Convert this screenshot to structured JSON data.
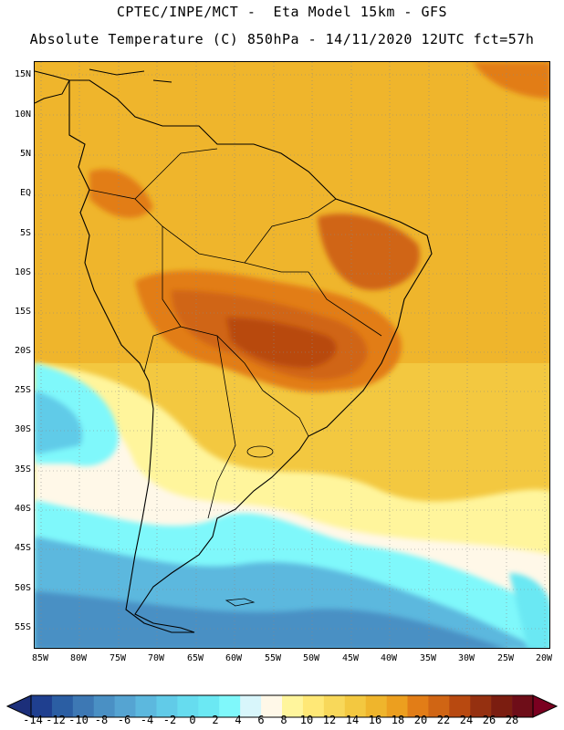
{
  "header": {
    "line1": "CPTEC/INPE/MCT -  Eta Model 15km - GFS",
    "line2": "Absolute Temperature (C) 850hPa - 14/11/2020 12UTC fct=57h"
  },
  "map": {
    "lat_labels": [
      "15N",
      "10N",
      "5N",
      "EQ",
      "5S",
      "10S",
      "15S",
      "20S",
      "25S",
      "30S",
      "35S",
      "40S",
      "45S",
      "50S",
      "55S"
    ],
    "lon_labels": [
      "85W",
      "80W",
      "75W",
      "70W",
      "65W",
      "60W",
      "55W",
      "50W",
      "45W",
      "40W",
      "35W",
      "30W",
      "25W",
      "20W"
    ]
  },
  "colorbar": {
    "labels": [
      "-14",
      "-12",
      "-10",
      "-8",
      "-6",
      "-4",
      "-2",
      "0",
      "2",
      "4",
      "6",
      "8",
      "10",
      "12",
      "14",
      "16",
      "18",
      "20",
      "22",
      "24",
      "26",
      "28"
    ],
    "colors": [
      "#1f3f8f",
      "#2b5ea3",
      "#3d78b4",
      "#4a90c4",
      "#55a4d2",
      "#5cb8de",
      "#61cbe8",
      "#66dcef",
      "#6be8f3",
      "#7ff8fb",
      "#d8f6fb",
      "#fff8e8",
      "#fff59c",
      "#ffe876",
      "#f8d85a",
      "#f3c840",
      "#efb52c",
      "#ec9f1f",
      "#e27d17",
      "#d06514",
      "#b84910",
      "#953010",
      "#7b1d10",
      "#6e0d18"
    ],
    "left_cap": "#1c2f7a",
    "right_cap": "#7a0020"
  }
}
